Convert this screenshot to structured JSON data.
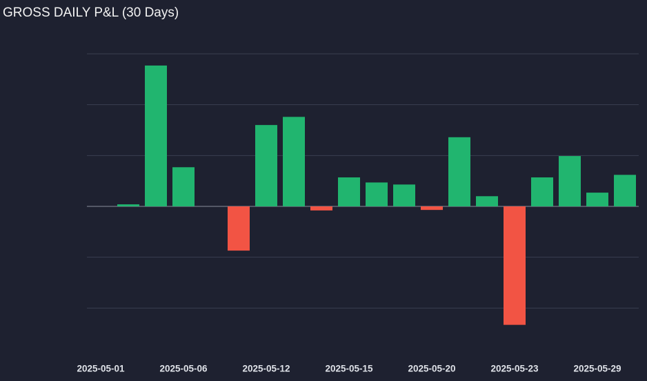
{
  "chart_data": {
    "type": "bar",
    "title": "GROSS DAILY P&L (30 Days)",
    "categories": [
      "2025-05-01",
      null,
      null,
      "2025-05-06",
      null,
      null,
      "2025-05-12",
      null,
      null,
      "2025-05-15",
      null,
      null,
      "2025-05-20",
      null,
      null,
      "2025-05-23",
      null,
      null,
      "2025-05-29",
      null
    ],
    "values": [
      0,
      0.04,
      2.77,
      0.77,
      0,
      -0.87,
      1.6,
      1.76,
      -0.08,
      0.57,
      0.47,
      0.43,
      -0.07,
      1.36,
      0.2,
      -2.33,
      0.57,
      0.99,
      0.27,
      0.62
    ],
    "positive_color": "#21b56f",
    "negative_color": "#f25444",
    "ylim": [
      -3,
      3
    ],
    "yticks": [
      -2,
      -1,
      0,
      1,
      2,
      3
    ],
    "grid": true
  }
}
